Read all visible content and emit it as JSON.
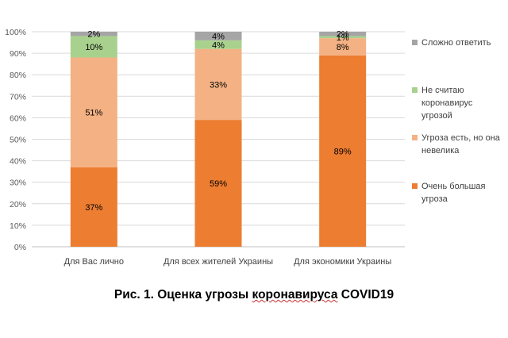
{
  "chart_data": {
    "type": "bar",
    "stacked": true,
    "categories": [
      "Для Вас лично",
      "Для всех жителей Украины",
      "Для экономики Украины"
    ],
    "series": [
      {
        "name": "Очень большая угроза",
        "values": [
          37,
          59,
          89
        ],
        "labels": [
          "37%",
          "59%",
          "89%"
        ],
        "color": "#ED7D31"
      },
      {
        "name": "Угроза есть, но она невелика",
        "values": [
          51,
          33,
          8
        ],
        "labels": [
          "51%",
          "33%",
          "8%"
        ],
        "color": "#F4B183"
      },
      {
        "name": "Не считаю коронавирус угрозой",
        "values": [
          10,
          4,
          1
        ],
        "labels": [
          "10%",
          "4%",
          "1%"
        ],
        "color": "#A9D18E"
      },
      {
        "name": "Сложно ответить",
        "values": [
          2,
          4,
          2
        ],
        "labels": [
          "2%",
          "4%",
          "2%"
        ],
        "color": "#A5A5A5"
      }
    ],
    "ylim": [
      0,
      100
    ],
    "yticks": [
      "0%",
      "10%",
      "20%",
      "30%",
      "40%",
      "50%",
      "60%",
      "70%",
      "80%",
      "90%",
      "100%"
    ],
    "grid": true,
    "legend_position": "right",
    "legend_lines": [
      [
        "Сложно ответить"
      ],
      [
        "Не считаю",
        "коронавирус",
        "угрозой"
      ],
      [
        "Угроза есть, но она",
        "невелика"
      ],
      [
        "Очень большая",
        "угроза"
      ]
    ]
  },
  "caption": {
    "prefix": "Рис. 1. Оценка угрозы ",
    "underlined": "коронавируса",
    "suffix": " COVID19"
  }
}
